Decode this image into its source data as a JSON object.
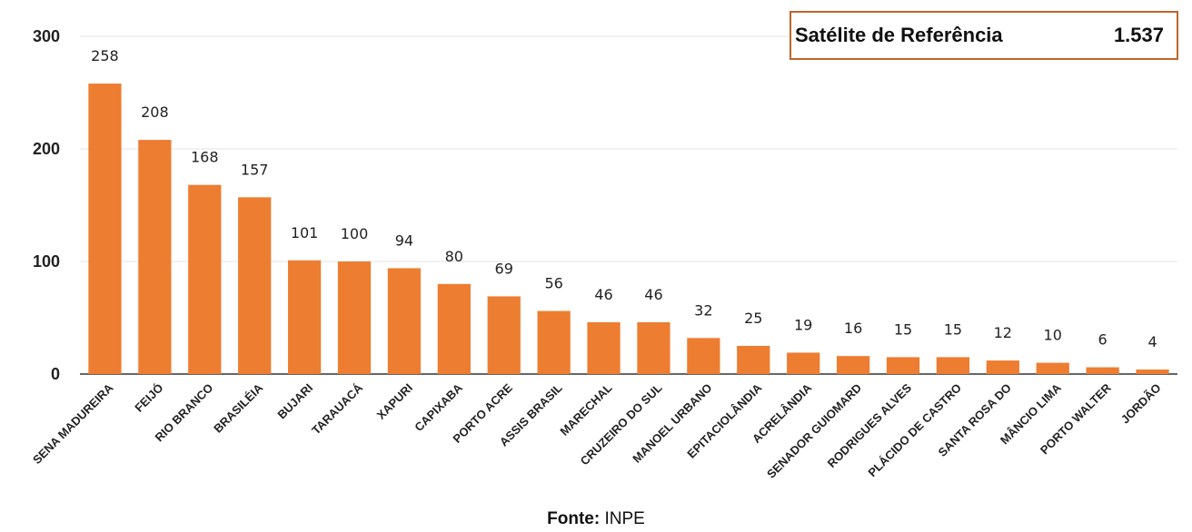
{
  "chart_data": {
    "type": "bar",
    "categories": [
      "SENA MADUREIRA",
      "FEIJÓ",
      "RIO BRANCO",
      "BRASILÉIA",
      "BUJARI",
      "TARAUACÁ",
      "XAPURI",
      "CAPIXABA",
      "PORTO ACRE",
      "ASSIS BRASIL",
      "MARECHAL",
      "CRUZEIRO DO SUL",
      "MANOEL URBANO",
      "EPITACIOLÂNDIA",
      "ACRELÂNDIA",
      "SENADOR GUIOMARD",
      "RODRIGUES ALVES",
      "PLÁCIDO DE CASTRO",
      "SANTA ROSA DO",
      "MÂNCIO LIMA",
      "PORTO WALTER",
      "JORDÃO"
    ],
    "values": [
      258,
      208,
      168,
      157,
      101,
      100,
      94,
      80,
      69,
      56,
      46,
      46,
      32,
      25,
      19,
      16,
      15,
      15,
      12,
      10,
      6,
      4
    ],
    "ylim": [
      0,
      300
    ],
    "yticks": [
      0,
      100,
      200,
      300
    ],
    "grid": true,
    "bar_color": "#ed7d31"
  },
  "reference": {
    "label": "Satélite de Referência",
    "value": "1.537",
    "border_color": "#c0652a"
  },
  "source": {
    "label": "Fonte:",
    "text": "INPE"
  }
}
